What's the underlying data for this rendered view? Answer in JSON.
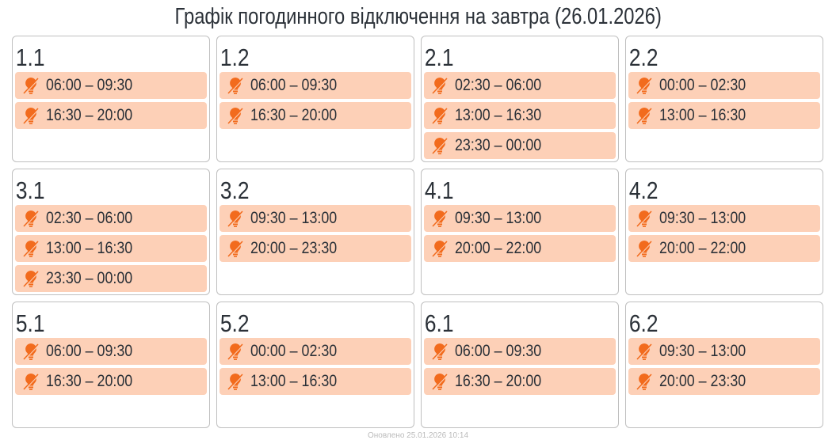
{
  "title": "Графік погодинного відключення на завтра (26.01.2026)",
  "colors": {
    "slot_bg": "#fdd0b7",
    "icon": "#f26b1d"
  },
  "slot_icon": "bulb-off-icon",
  "groups": [
    {
      "name": "1.1",
      "slots": [
        "06:00 – 09:30",
        "16:30 – 20:00"
      ]
    },
    {
      "name": "1.2",
      "slots": [
        "06:00 – 09:30",
        "16:30 – 20:00"
      ]
    },
    {
      "name": "2.1",
      "slots": [
        "02:30 – 06:00",
        "13:00 – 16:30",
        "23:30 – 00:00"
      ]
    },
    {
      "name": "2.2",
      "slots": [
        "00:00 – 02:30",
        "13:00 – 16:30"
      ]
    },
    {
      "name": "3.1",
      "slots": [
        "02:30 – 06:00",
        "13:00 – 16:30",
        "23:30 – 00:00"
      ]
    },
    {
      "name": "3.2",
      "slots": [
        "09:30 – 13:00",
        "20:00 – 23:30"
      ]
    },
    {
      "name": "4.1",
      "slots": [
        "09:30 – 13:00",
        "20:00 – 22:00"
      ]
    },
    {
      "name": "4.2",
      "slots": [
        "09:30 – 13:00",
        "20:00 – 22:00"
      ]
    },
    {
      "name": "5.1",
      "slots": [
        "06:00 – 09:30",
        "16:30 – 20:00"
      ]
    },
    {
      "name": "5.2",
      "slots": [
        "00:00 – 02:30",
        "13:00 – 16:30"
      ]
    },
    {
      "name": "6.1",
      "slots": [
        "06:00 – 09:30",
        "16:30 – 20:00"
      ]
    },
    {
      "name": "6.2",
      "slots": [
        "09:30 – 13:00",
        "20:00 – 23:30"
      ]
    }
  ],
  "footer": "Оновлено 25.01.2026 10:14"
}
